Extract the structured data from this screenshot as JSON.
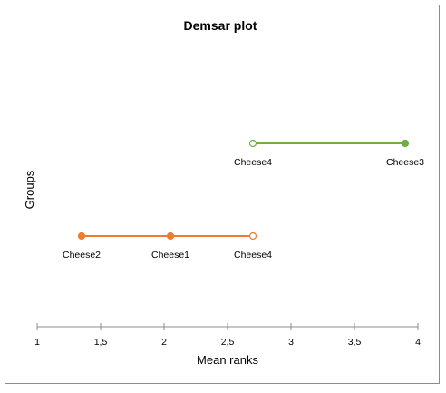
{
  "chart_data": {
    "type": "line",
    "title": "Demsar plot",
    "xlabel": "Mean ranks",
    "ylabel": "Groups",
    "xlim": [
      1,
      4
    ],
    "x_ticks": [
      1,
      1.5,
      2,
      2.5,
      3,
      3.5,
      4
    ],
    "x_tick_labels": [
      "1",
      "1,5",
      "2",
      "2,5",
      "3",
      "3,5",
      "4"
    ],
    "grid": false,
    "series": [
      {
        "color": "#70ad47",
        "points": [
          {
            "label": "Cheese4",
            "x": 2.7,
            "filled": false
          },
          {
            "label": "Cheese3",
            "x": 3.9,
            "filled": true
          }
        ]
      },
      {
        "color": "#ed7d31",
        "points": [
          {
            "label": "Cheese2",
            "x": 1.35,
            "filled": true
          },
          {
            "label": "Cheese1",
            "x": 2.05,
            "filled": true
          },
          {
            "label": "Cheese4",
            "x": 2.7,
            "filled": false
          }
        ]
      }
    ]
  }
}
